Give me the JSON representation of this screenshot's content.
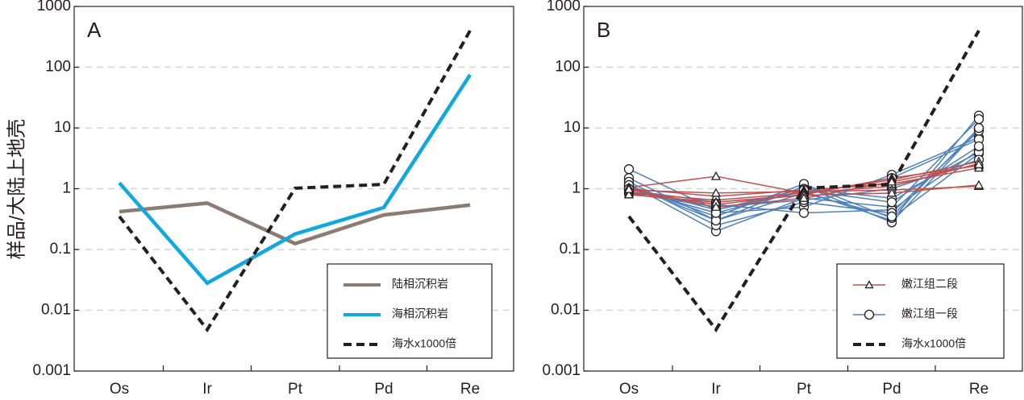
{
  "ylabel": "样品/大陆上地壳",
  "chart_data": [
    {
      "type": "line",
      "panel_label": "A",
      "y_scale": "log",
      "ylim": [
        0.001,
        1000
      ],
      "ytick_labels": [
        "1000",
        "100",
        "10",
        "1",
        "0.1",
        "0.01",
        "0.001"
      ],
      "yticks": [
        1000,
        100,
        10,
        1,
        0.1,
        0.01,
        0.001
      ],
      "categories": [
        "Os",
        "Ir",
        "Pt",
        "Pd",
        "Re"
      ],
      "grid": "dashed horizontal at each decade",
      "legend_position": "bottom-right",
      "series": [
        {
          "name": "陆相沉积岩",
          "color": "#8b7b73",
          "style": "solid",
          "values": [
            0.42,
            0.58,
            0.125,
            0.37,
            0.54
          ]
        },
        {
          "name": "海相沉积岩",
          "color": "#11a7df",
          "style": "solid",
          "values": [
            1.25,
            0.028,
            0.18,
            0.49,
            75
          ]
        },
        {
          "name": "海水x1000倍",
          "color": "#231f20",
          "style": "dashed",
          "values": [
            0.35,
            0.0048,
            1.02,
            1.18,
            400
          ]
        }
      ]
    },
    {
      "type": "line",
      "panel_label": "B",
      "y_scale": "log",
      "ylim": [
        0.001,
        1000
      ],
      "ytick_labels": [
        "1000",
        "100",
        "10",
        "1",
        "0.1",
        "0.01",
        "0.001"
      ],
      "yticks": [
        1000,
        100,
        10,
        1,
        0.1,
        0.01,
        0.001
      ],
      "categories": [
        "Os",
        "Ir",
        "Pt",
        "Pd",
        "Re"
      ],
      "grid": "dashed horizontal at each decade",
      "legend_position": "bottom-right",
      "legend": [
        {
          "name": "嫩江组二段",
          "color": "#c0504d",
          "marker": "triangle"
        },
        {
          "name": "嫩江组一段",
          "color": "#4f81bd",
          "marker": "circle"
        },
        {
          "name": "海水x1000倍",
          "color": "#231f20",
          "marker": "none"
        }
      ],
      "groups": [
        {
          "name": "嫩江组二段",
          "color": "#c0504d",
          "marker": "triangle",
          "samples": [
            [
              0.85,
              0.65,
              0.85,
              1.1,
              2.6
            ],
            [
              0.9,
              0.55,
              0.8,
              1.5,
              2.4
            ],
            [
              1.0,
              0.75,
              0.95,
              1.2,
              2.2
            ],
            [
              0.95,
              0.85,
              0.9,
              0.95,
              1.1
            ],
            [
              1.05,
              1.6,
              0.85,
              1.4,
              2.8
            ],
            [
              0.8,
              0.6,
              0.78,
              0.85,
              1.15
            ],
            [
              0.98,
              0.5,
              0.7,
              1.3,
              2.5
            ]
          ]
        },
        {
          "name": "嫩江组一段",
          "color": "#4f81bd",
          "marker": "circle",
          "samples": [
            [
              2.1,
              0.45,
              0.9,
              0.3,
              16.0
            ],
            [
              1.5,
              0.3,
              1.1,
              0.28,
              9.5
            ],
            [
              1.2,
              0.2,
              0.7,
              0.5,
              14.0
            ],
            [
              1.0,
              0.4,
              0.5,
              1.7,
              7.0
            ],
            [
              0.9,
              0.55,
              0.4,
              0.45,
              4.3
            ],
            [
              1.1,
              0.35,
              1.2,
              0.33,
              3.8
            ],
            [
              0.95,
              0.6,
              0.8,
              1.5,
              6.5
            ],
            [
              1.3,
              0.25,
              0.6,
              0.4,
              9.0
            ],
            [
              1.05,
              0.45,
              1.0,
              0.7,
              4.0
            ],
            [
              0.85,
              0.5,
              0.65,
              1.0,
              3.0
            ],
            [
              1.15,
              0.3,
              0.85,
              0.35,
              10.0
            ],
            [
              1.0,
              0.4,
              0.95,
              0.6,
              5.0
            ]
          ]
        },
        {
          "name": "海水x1000倍",
          "color": "#231f20",
          "style": "dashed",
          "samples": [
            [
              0.35,
              0.0048,
              1.02,
              1.18,
              400
            ]
          ]
        }
      ]
    }
  ]
}
